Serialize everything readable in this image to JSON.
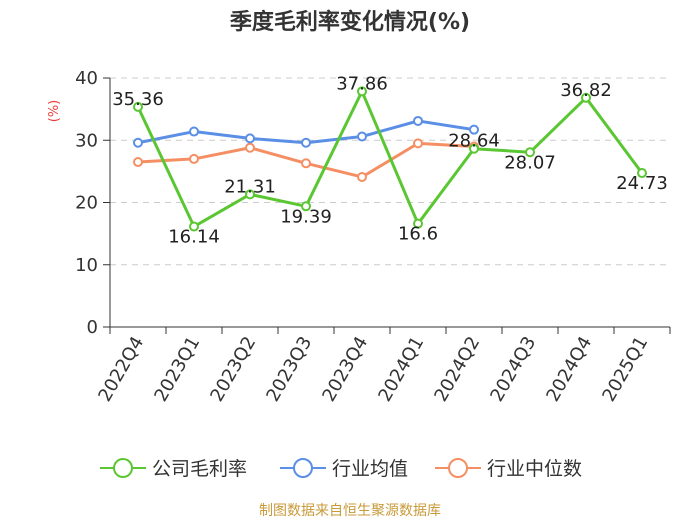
{
  "chart_data": {
    "type": "line",
    "title": "季度毛利率变化情况(%)",
    "ylabel": "(%)",
    "xlabel": "",
    "ylim": [
      0,
      40
    ],
    "yticks": [
      0,
      10,
      20,
      30,
      40
    ],
    "grid": true,
    "legend_position": "bottom",
    "categories": [
      "2022Q4",
      "2023Q1",
      "2023Q2",
      "2023Q3",
      "2023Q4",
      "2024Q1",
      "2024Q2",
      "2024Q3",
      "2024Q4",
      "2025Q1"
    ],
    "series": [
      {
        "name": "公司毛利率",
        "color": "#5ac732",
        "values": [
          35.36,
          16.14,
          21.31,
          19.39,
          37.86,
          16.6,
          28.64,
          28.07,
          36.82,
          24.73
        ],
        "labels": [
          "35.36",
          "16.14",
          "21.31",
          "19.39",
          "37.86",
          "16.6",
          "28.64",
          "28.07",
          "36.82",
          "24.73"
        ]
      },
      {
        "name": "行业均值",
        "color": "#5b8fe6",
        "values": [
          29.6,
          31.4,
          30.3,
          29.6,
          30.6,
          33.1,
          31.7,
          null,
          null,
          null
        ]
      },
      {
        "name": "行业中位数",
        "color": "#f58f63",
        "values": [
          26.5,
          27.0,
          28.8,
          26.3,
          24.1,
          29.5,
          29.0,
          null,
          null,
          null
        ]
      }
    ],
    "source": "制图数据来自恒生聚源数据库"
  }
}
